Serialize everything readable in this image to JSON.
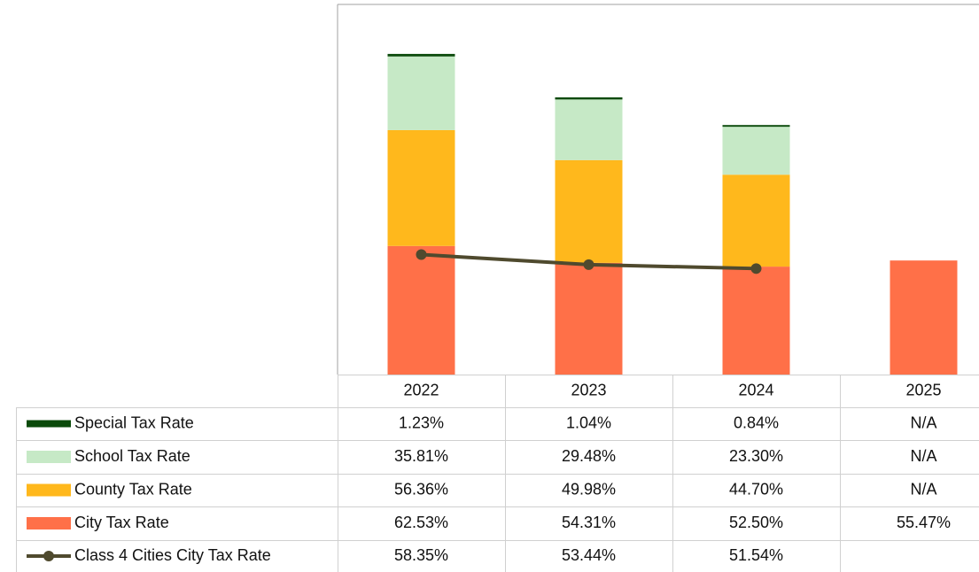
{
  "chart_data": {
    "type": "bar",
    "stacked": true,
    "categories": [
      "2022",
      "2023",
      "2024",
      "2025"
    ],
    "ylim": [
      0,
      180
    ],
    "series": [
      {
        "name": "Special Tax Rate",
        "color": "#0b4a0b",
        "type": "bar",
        "values": [
          1.23,
          1.04,
          0.84,
          null
        ],
        "value_labels": [
          "1.23%",
          "1.04%",
          "0.84%",
          "N/A"
        ]
      },
      {
        "name": "School Tax Rate",
        "color": "#c6e9c6",
        "type": "bar",
        "values": [
          35.81,
          29.48,
          23.3,
          null
        ],
        "value_labels": [
          "35.81%",
          "29.48%",
          "23.30%",
          "N/A"
        ]
      },
      {
        "name": "County Tax Rate",
        "color": "#ffb81c",
        "type": "bar",
        "values": [
          56.36,
          49.98,
          44.7,
          null
        ],
        "value_labels": [
          "56.36%",
          "49.98%",
          "44.70%",
          "N/A"
        ]
      },
      {
        "name": "City Tax Rate",
        "color": "#ff7048",
        "type": "bar",
        "values": [
          62.53,
          54.31,
          52.5,
          55.47
        ],
        "value_labels": [
          "62.53%",
          "54.31%",
          "52.50%",
          "55.47%"
        ]
      },
      {
        "name": "Class 4 Cities City Tax Rate",
        "color": "#4f4a2e",
        "type": "line",
        "values": [
          58.35,
          53.44,
          51.54,
          null
        ],
        "value_labels": [
          "58.35%",
          "53.44%",
          "51.54%",
          null
        ]
      }
    ]
  }
}
